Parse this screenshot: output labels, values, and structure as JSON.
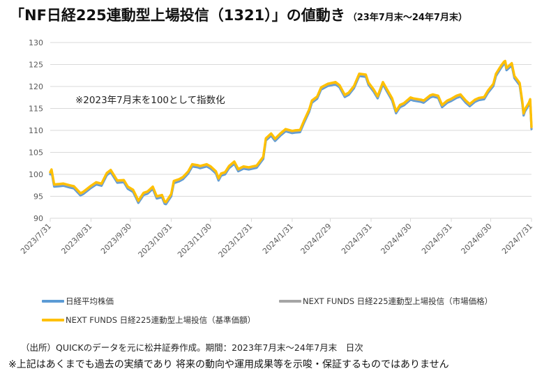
{
  "title": "「NF日経225連動型上場投信（1321）」の値動き",
  "subtitle": "（23年7月末～24年7月末）",
  "note": "※2023年7月末を100として指数化",
  "source": "（出所）QUICKのデータを元に松井証券作成。期間：2023年7月末～24年7月末　日次",
  "disclaimer": "※上記はあくまでも過去の実績であり 将来の動向や運用成果等を示唆・保証するものではありません",
  "colors": {
    "nikkei": "#5B9BD5",
    "market": "#A5A5A5",
    "nav": "#FFC000",
    "grid": "#D9D9D9",
    "axis_text": "#595959"
  },
  "chart_data": {
    "type": "line",
    "title": "「NF日経225連動型上場投信（1321）」の値動き",
    "subtitle": "（23年7月末～24年7月末）",
    "ylim": [
      90,
      130
    ],
    "yticks": [
      90,
      95,
      100,
      105,
      110,
      115,
      120,
      125,
      130
    ],
    "xlim": [
      "2023/7/31",
      "2024/7/31"
    ],
    "xticks": [
      "2023/7/31",
      "2023/8/31",
      "2023/9/30",
      "2023/10/31",
      "2023/11/30",
      "2023/12/31",
      "2024/1/31",
      "2024/2/29",
      "2024/3/31",
      "2024/4/30",
      "2024/5/31",
      "2024/6/30",
      "2024/7/31"
    ],
    "grid": "horizontal",
    "legend_position": "bottom",
    "x": [
      "2023/7/31",
      "2023/8/1",
      "2023/8/3",
      "2023/8/7",
      "2023/8/10",
      "2023/8/15",
      "2023/8/18",
      "2023/8/23",
      "2023/8/25",
      "2023/8/31",
      "2023/9/4",
      "2023/9/8",
      "2023/9/12",
      "2023/9/15",
      "2023/9/20",
      "2023/9/25",
      "2023/9/28",
      "2023/10/2",
      "2023/10/4",
      "2023/10/6",
      "2023/10/10",
      "2023/10/13",
      "2023/10/17",
      "2023/10/20",
      "2023/10/24",
      "2023/10/26",
      "2023/10/27",
      "2023/10/31",
      "2023/11/2",
      "2023/11/6",
      "2023/11/9",
      "2023/11/13",
      "2023/11/16",
      "2023/11/20",
      "2023/11/22",
      "2023/11/27",
      "2023/11/30",
      "2023/12/4",
      "2023/12/6",
      "2023/12/8",
      "2023/12/11",
      "2023/12/14",
      "2023/12/18",
      "2023/12/21",
      "2023/12/25",
      "2023/12/29",
      "2024/1/4",
      "2024/1/9",
      "2024/1/11",
      "2024/1/15",
      "2024/1/18",
      "2024/1/22",
      "2024/1/26",
      "2024/1/31",
      "2024/2/2",
      "2024/2/6",
      "2024/2/9",
      "2024/2/13",
      "2024/2/15",
      "2024/2/19",
      "2024/2/22",
      "2024/2/27",
      "2024/3/4",
      "2024/3/7",
      "2024/3/11",
      "2024/3/14",
      "2024/3/18",
      "2024/3/22",
      "2024/3/27",
      "2024/3/29",
      "2024/4/2",
      "2024/4/5",
      "2024/4/9",
      "2024/4/12",
      "2024/4/16",
      "2024/4/19",
      "2024/4/22",
      "2024/4/25",
      "2024/4/30",
      "2024/5/2",
      "2024/5/8",
      "2024/5/10",
      "2024/5/15",
      "2024/5/17",
      "2024/5/21",
      "2024/5/24",
      "2024/5/28",
      "2024/5/31",
      "2024/6/4",
      "2024/6/7",
      "2024/6/11",
      "2024/6/14",
      "2024/6/18",
      "2024/6/21",
      "2024/6/25",
      "2024/6/28",
      "2024/7/2",
      "2024/7/4",
      "2024/7/8",
      "2024/7/10",
      "2024/7/11",
      "2024/7/12",
      "2024/7/16",
      "2024/7/18",
      "2024/7/22",
      "2024/7/24",
      "2024/7/25",
      "2024/7/26",
      "2024/7/29",
      "2024/7/30",
      "2024/7/31"
    ],
    "series": [
      {
        "name": "日経平均株価",
        "color": "#5B9BD5",
        "values": [
          100,
          100.6,
          97.2,
          97.3,
          97.4,
          97,
          96.8,
          95.2,
          95.5,
          96.9,
          97.7,
          97.4,
          99.8,
          100.5,
          98.1,
          98.2,
          96.7,
          96,
          94.8,
          93.5,
          95.3,
          95.6,
          96.7,
          94.5,
          94.8,
          93.3,
          93.2,
          95,
          98,
          98.4,
          98.9,
          100.2,
          101.8,
          101.6,
          101.4,
          101.8,
          101.3,
          100.2,
          98.6,
          99.7,
          100,
          101.4,
          102.4,
          100.7,
          101.3,
          101.1,
          101.5,
          103.5,
          107.7,
          108.8,
          107.6,
          108.8,
          109.8,
          109.4,
          109.5,
          109.6,
          111.7,
          114.3,
          116.3,
          117.2,
          119.3,
          120.1,
          120.5,
          119.8,
          117.6,
          118.1,
          119.6,
          122.4,
          122.2,
          120.4,
          118.8,
          117.3,
          120.5,
          118.9,
          116.8,
          113.9,
          115.3,
          115.7,
          117,
          116.8,
          116.5,
          116.3,
          117.5,
          117.7,
          117.4,
          115.3,
          116.3,
          116.7,
          117.4,
          117.7,
          116.3,
          115.5,
          116.5,
          116.9,
          117.1,
          118.6,
          120.1,
          122.4,
          124.3,
          125.1,
          125.3,
          123.7,
          124.8,
          121.9,
          120.3,
          116.1,
          113.4,
          114.3,
          115.8,
          116.6,
          110.3
        ]
      },
      {
        "name": "NEXT FUNDS 日経225連動型上場投信（市場価格）",
        "color": "#A5A5A5",
        "values": [
          100.3,
          100.9,
          97.5,
          97.6,
          97.7,
          97.3,
          97.1,
          95.5,
          95.8,
          97.2,
          98,
          97.7,
          100.1,
          100.8,
          98.4,
          98.5,
          97,
          96.3,
          95.1,
          93.8,
          95.6,
          95.9,
          97,
          94.8,
          95.1,
          93.6,
          93.5,
          95.3,
          98.3,
          98.7,
          99.2,
          100.5,
          102.1,
          101.9,
          101.7,
          102.1,
          101.6,
          100.5,
          98.9,
          100,
          100.3,
          101.7,
          102.7,
          101,
          101.6,
          101.4,
          101.8,
          103.8,
          108,
          109.1,
          107.9,
          109.1,
          110.1,
          109.7,
          109.8,
          109.9,
          112,
          114.6,
          116.6,
          117.5,
          119.6,
          120.4,
          120.8,
          120.1,
          117.9,
          118.4,
          119.9,
          122.7,
          122.5,
          120.7,
          119.1,
          117.6,
          120.8,
          119.2,
          117.1,
          114.2,
          115.6,
          116,
          117.3,
          117.1,
          116.8,
          116.6,
          117.8,
          118,
          117.7,
          115.6,
          116.6,
          117,
          117.7,
          118,
          116.6,
          115.8,
          116.8,
          117.2,
          117.4,
          118.9,
          120.4,
          122.7,
          124.6,
          125.4,
          125.6,
          124,
          125.1,
          122.2,
          120.6,
          116.4,
          113.7,
          114.6,
          116.1,
          116.9,
          110.6
        ]
      },
      {
        "name": "NEXT FUNDS 日経225連動型上場投信（基準価額）",
        "color": "#FFC000",
        "values": [
          100.5,
          101.1,
          97.7,
          97.8,
          97.9,
          97.5,
          97.3,
          95.7,
          96,
          97.4,
          98.2,
          97.9,
          100.3,
          101,
          98.6,
          98.7,
          97.2,
          96.5,
          95.3,
          94,
          95.8,
          96.1,
          97.2,
          95,
          95.3,
          93.8,
          93.7,
          95.5,
          98.5,
          98.9,
          99.4,
          100.7,
          102.3,
          102.1,
          101.9,
          102.3,
          101.8,
          100.7,
          99.1,
          100.2,
          100.5,
          101.9,
          102.9,
          101.2,
          101.8,
          101.6,
          102,
          104,
          108.2,
          109.3,
          108.1,
          109.3,
          110.3,
          109.9,
          110,
          110.1,
          112.2,
          114.8,
          116.8,
          117.7,
          119.8,
          120.6,
          121,
          120.3,
          118.1,
          118.6,
          120.1,
          122.9,
          122.7,
          120.9,
          119.3,
          117.8,
          121,
          119.4,
          117.3,
          114.4,
          115.8,
          116.2,
          117.5,
          117.3,
          117,
          116.8,
          118,
          118.2,
          117.9,
          115.8,
          116.8,
          117.2,
          117.9,
          118.2,
          116.8,
          116,
          117,
          117.4,
          117.6,
          119.1,
          120.6,
          122.9,
          124.8,
          125.6,
          125.8,
          124.2,
          125.3,
          122.4,
          120.8,
          116.6,
          113.9,
          114.8,
          116.3,
          117.1,
          110.8
        ]
      }
    ]
  },
  "legend": [
    {
      "label": "日経平均株価",
      "color": "#5B9BD5"
    },
    {
      "label": "NEXT FUNDS 日経225連動型上場投信（市場価格）",
      "color": "#A5A5A5"
    },
    {
      "label": "NEXT FUNDS 日経225連動型上場投信（基準価額）",
      "color": "#FFC000"
    }
  ]
}
